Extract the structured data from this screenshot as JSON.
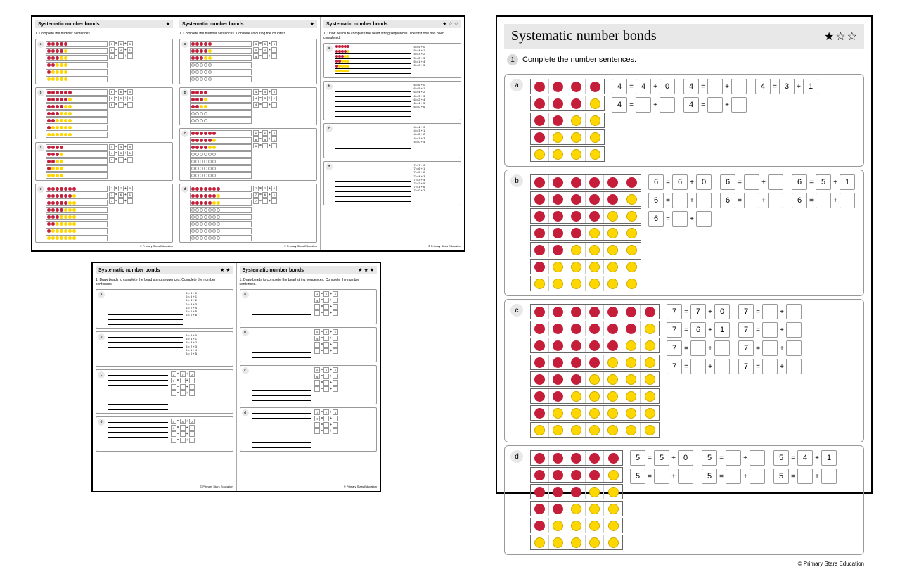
{
  "colors": {
    "red": "#c41e3a",
    "yellow": "#ffd700",
    "headerBg": "#e8e8e8",
    "border": "#999999"
  },
  "title": "Systematic number bonds",
  "footer": "© Primary Stars Education",
  "thumbs1": [
    {
      "stars": 1,
      "instruction": "1. Complete the number sentences.",
      "type": "counters",
      "sections": [
        {
          "label": "a",
          "n": 5,
          "cols": 5
        },
        {
          "label": "b",
          "n": 6,
          "cols": 6
        },
        {
          "label": "c",
          "n": 4,
          "cols": 4
        },
        {
          "label": "d",
          "n": 7,
          "cols": 7
        }
      ]
    },
    {
      "stars": 1,
      "instruction": "1. Complete the number sentences. Continue colouring the counters.",
      "type": "counters-partial",
      "sections": [
        {
          "label": "a",
          "n": 5,
          "cols": 5
        },
        {
          "label": "b",
          "n": 4,
          "cols": 4
        },
        {
          "label": "c",
          "n": 6,
          "cols": 6
        },
        {
          "label": "d",
          "n": 7,
          "cols": 7
        }
      ]
    },
    {
      "stars": 1,
      "starsShown": 3,
      "instruction": "1. Draw beads to complete the bead string sequences. The first one has been completed.",
      "type": "beads",
      "sections": [
        {
          "label": "a",
          "n": 5,
          "filled": true
        },
        {
          "label": "b",
          "n": 6
        },
        {
          "label": "c",
          "n": 4
        },
        {
          "label": "d",
          "n": 7
        }
      ]
    }
  ],
  "thumbs2": [
    {
      "stars": 2,
      "instruction": "1. Draw beads to complete the bead string sequences. Complete the number sentences.",
      "type": "beads-eq",
      "sections": [
        {
          "label": "a",
          "n": 6,
          "showText": true
        },
        {
          "label": "b",
          "n": 5,
          "showText": true
        },
        {
          "label": "c",
          "n": 7,
          "showBoxes": true
        },
        {
          "label": "d",
          "n": 4,
          "showBoxes": true
        }
      ]
    },
    {
      "stars": 3,
      "instruction": "1. Draw beads to complete the bead string sequences. Complete the number sentences.",
      "type": "beads-eq",
      "sections": [
        {
          "label": "a",
          "n": 4,
          "showBoxes": true
        },
        {
          "label": "b",
          "n": 5,
          "showBoxes": true
        },
        {
          "label": "c",
          "n": 6,
          "showBoxes": true
        },
        {
          "label": "d",
          "n": 7,
          "showBoxes": true
        }
      ]
    }
  ],
  "large": {
    "stars": 1,
    "starsShown": 3,
    "instruction": "Complete the number sentences.",
    "instrNum": "1",
    "sections": [
      {
        "label": "a",
        "n": 4,
        "cols": 4,
        "equations": [
          [
            "4",
            "=",
            "4",
            "+",
            "0"
          ],
          [
            "4",
            "=",
            "",
            "+",
            ""
          ],
          [
            "4",
            "=",
            "3",
            "+",
            "1"
          ],
          [
            "4",
            "=",
            "",
            "+",
            ""
          ],
          [
            "4",
            "=",
            "",
            "+",
            ""
          ]
        ]
      },
      {
        "label": "b",
        "n": 6,
        "cols": 6,
        "equations": [
          [
            "6",
            "=",
            "6",
            "+",
            "0"
          ],
          [
            "6",
            "=",
            "",
            "+",
            ""
          ],
          [
            "6",
            "=",
            "5",
            "+",
            "1"
          ],
          [
            "6",
            "=",
            "",
            "+",
            ""
          ],
          [
            "6",
            "=",
            "",
            "+",
            ""
          ],
          [
            "6",
            "=",
            "",
            "+",
            ""
          ],
          [
            "6",
            "=",
            "",
            "+",
            ""
          ]
        ]
      },
      {
        "label": "c",
        "n": 7,
        "cols": 7,
        "equations": [
          [
            "7",
            "=",
            "7",
            "+",
            "0"
          ],
          [
            "7",
            "=",
            "",
            "+",
            ""
          ],
          [
            "7",
            "=",
            "6",
            "+",
            "1"
          ],
          [
            "7",
            "=",
            "",
            "+",
            ""
          ],
          [
            "7",
            "=",
            "",
            "+",
            ""
          ],
          [
            "7",
            "=",
            "",
            "+",
            ""
          ],
          [
            "7",
            "=",
            "",
            "+",
            ""
          ],
          [
            "7",
            "=",
            "",
            "+",
            ""
          ]
        ]
      },
      {
        "label": "d",
        "n": 5,
        "cols": 5,
        "equations": [
          [
            "5",
            "=",
            "5",
            "+",
            "0"
          ],
          [
            "5",
            "=",
            "",
            "+",
            ""
          ],
          [
            "5",
            "=",
            "4",
            "+",
            "1"
          ],
          [
            "5",
            "=",
            "",
            "+",
            ""
          ],
          [
            "5",
            "=",
            "",
            "+",
            ""
          ],
          [
            "5",
            "=",
            "",
            "+",
            ""
          ]
        ]
      }
    ]
  }
}
